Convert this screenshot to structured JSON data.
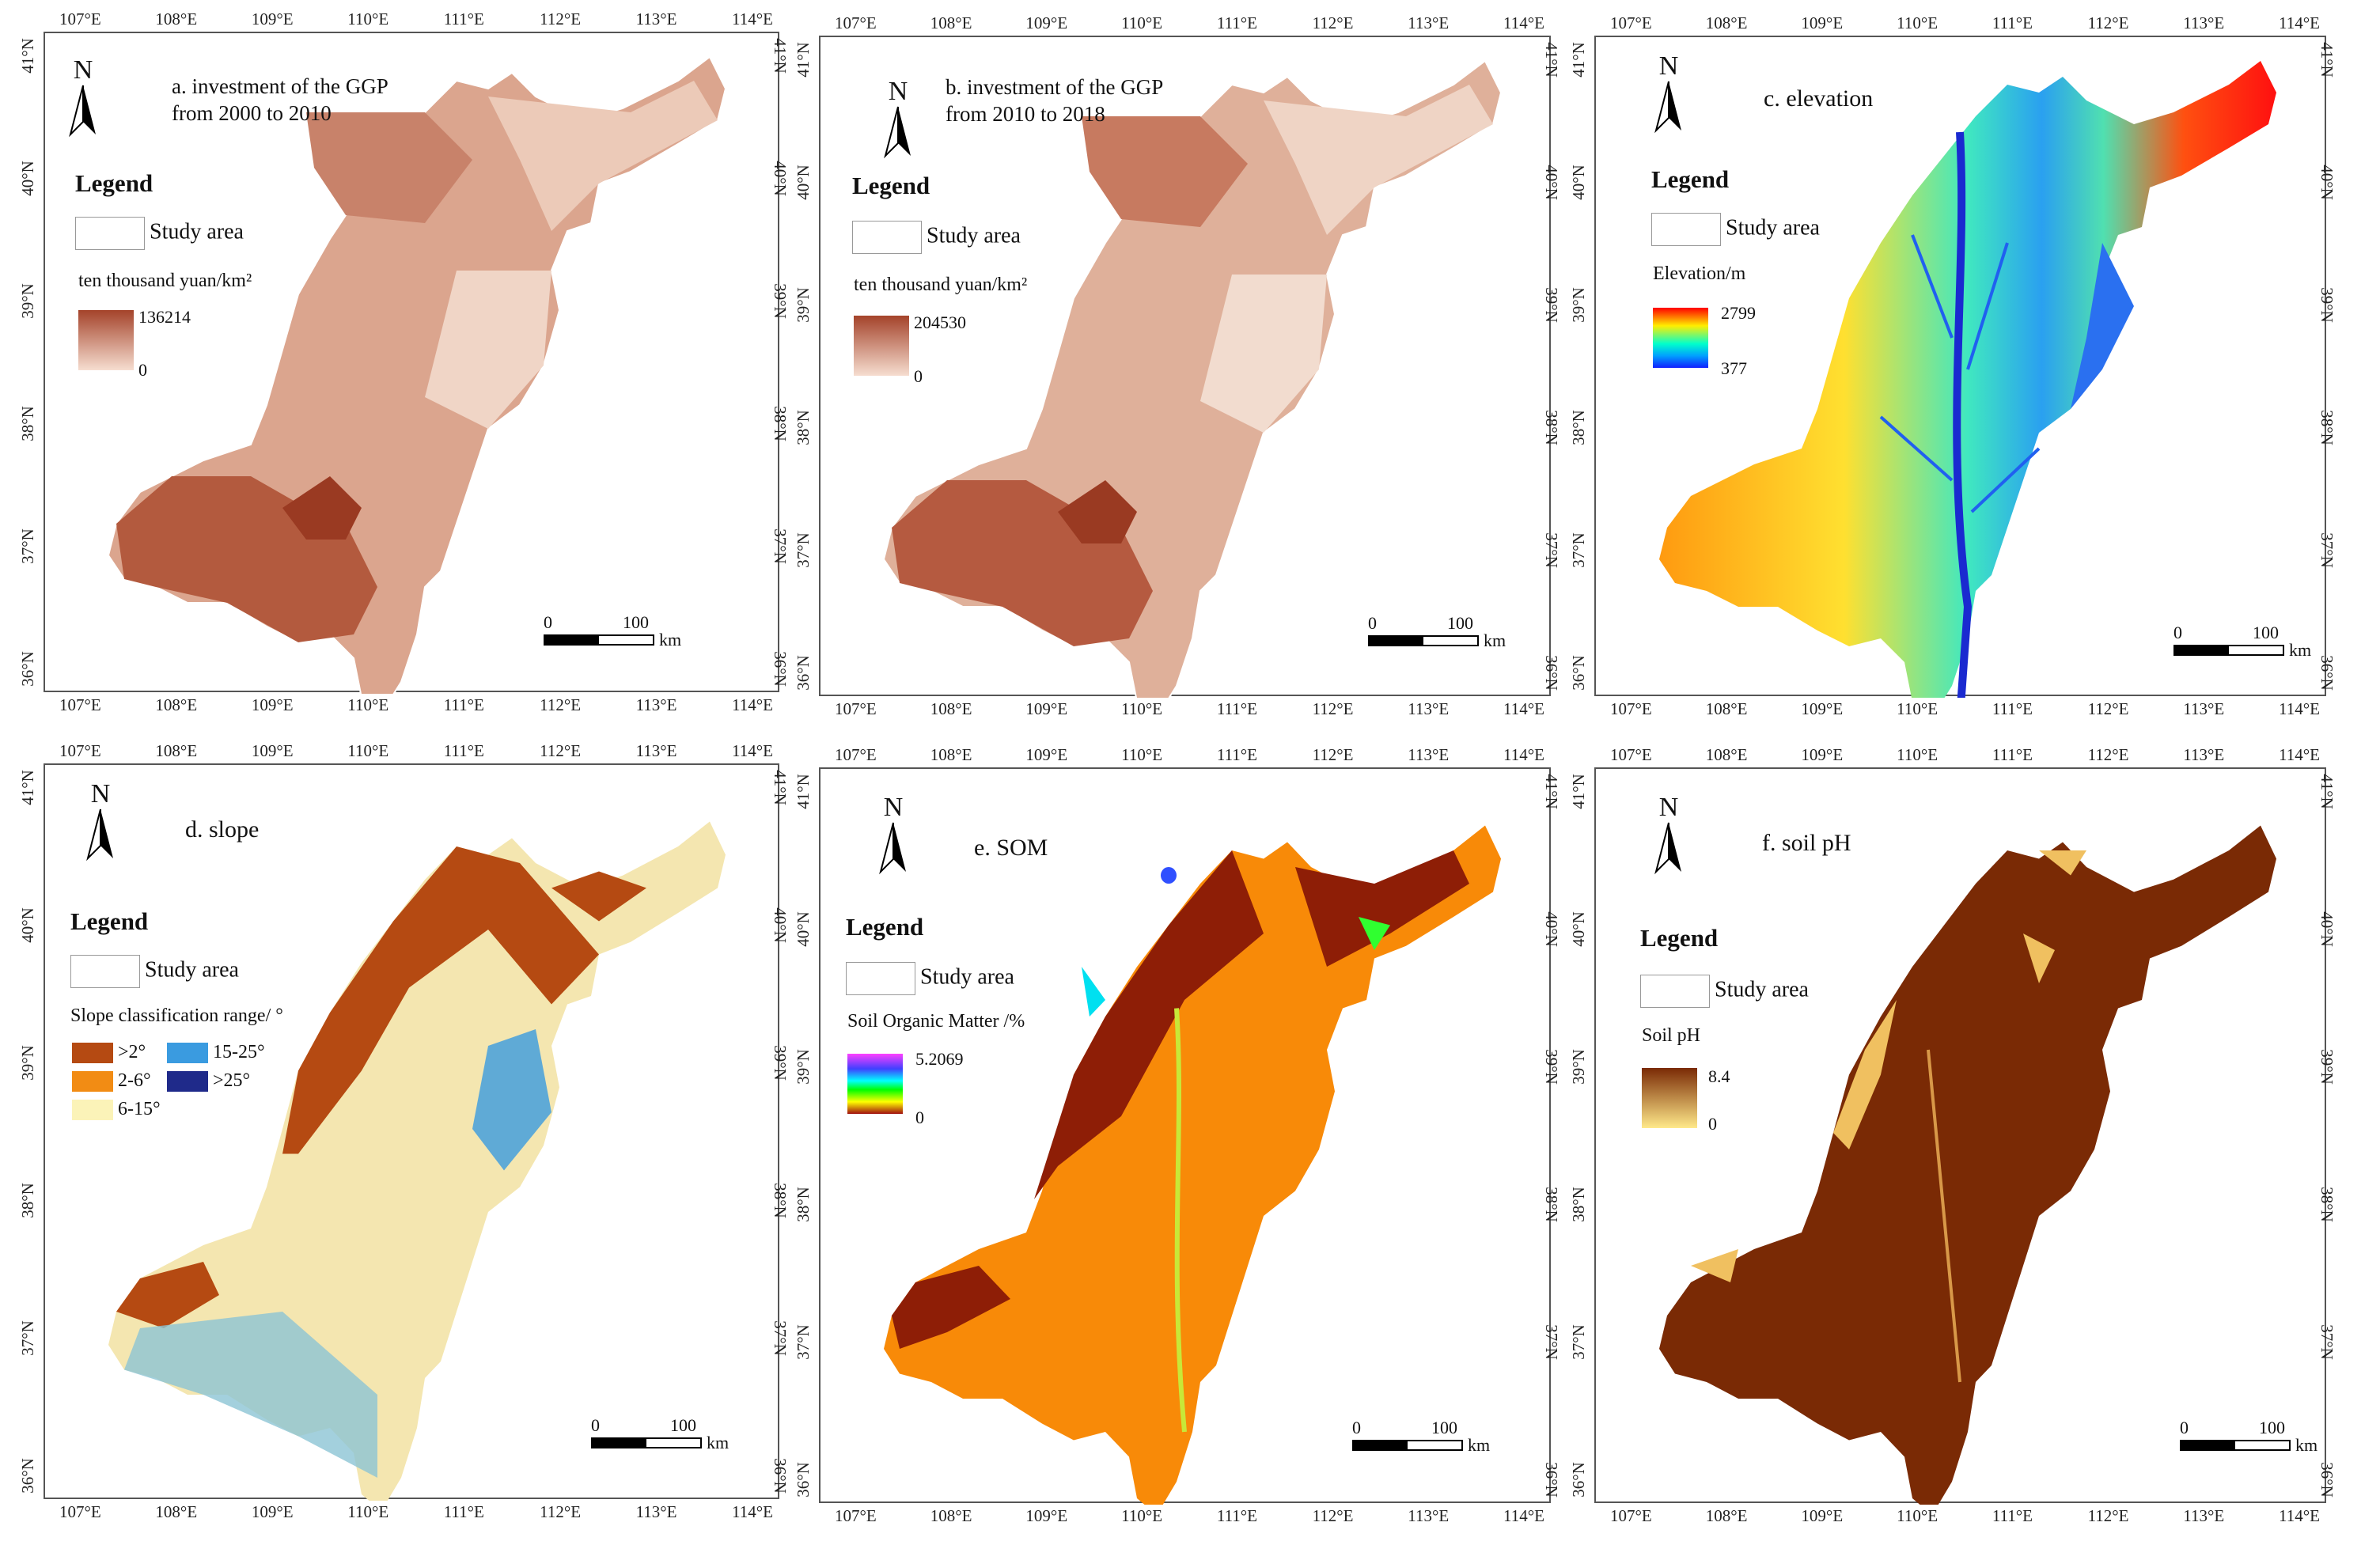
{
  "panels": {
    "a": {
      "title_line1": "a. investment of the GGP",
      "title_line2": "from 2000 to 2010",
      "unit": "ten thousand yuan/km²",
      "max": "136214",
      "min": "0",
      "ramp_top": "#a4432a",
      "ramp_bottom": "#f6ddd0",
      "fill": "#dba58e"
    },
    "b": {
      "title_line1": "b. investment of the GGP",
      "title_line2": "from 2010 to 2018",
      "unit": "ten thousand yuan/km²",
      "max": "204530",
      "min": "0",
      "ramp_top": "#a4432a",
      "ramp_bottom": "#f6ddd0",
      "fill": "#dba58e"
    },
    "c": {
      "title": "c. elevation",
      "unit": "Elevation/m",
      "max": "2799",
      "min": "377"
    },
    "d": {
      "title": "d. slope",
      "unit": "Slope classification range/ °",
      "classes": [
        {
          "label": ">2°",
          "color": "#b54a12"
        },
        {
          "label": "15-25°",
          "color": "#3a9be0"
        },
        {
          "label": "2-6°",
          "color": "#f28c14"
        },
        {
          "label": ">25°",
          "color": "#1f2a8a"
        },
        {
          "label": "6-15°",
          "color": "#fbf3b8"
        }
      ]
    },
    "e": {
      "title": "e. SOM",
      "unit": "Soil Organic Matter /%",
      "max": "5.2069",
      "min": "0"
    },
    "f": {
      "title": "f. soil pH",
      "unit": "Soil pH",
      "max": "8.4",
      "min": "0"
    }
  },
  "common": {
    "legend": "Legend",
    "study_area": "Study area",
    "north": "N",
    "scale_0": "0",
    "scale_100": "100",
    "scale_unit": "km",
    "lon_ticks": [
      "107°E",
      "108°E",
      "109°E",
      "110°E",
      "111°E",
      "112°E",
      "113°E",
      "114°E"
    ],
    "lat_ticks": [
      "41°N",
      "40°N",
      "39°N",
      "38°N",
      "37°N",
      "36°N"
    ]
  }
}
